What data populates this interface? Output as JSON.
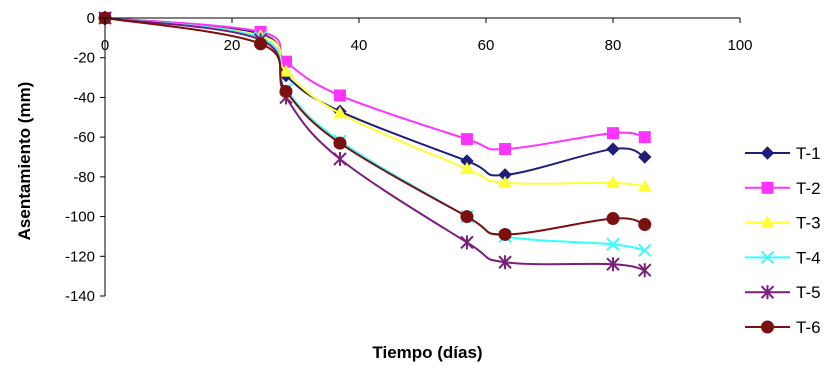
{
  "chart_data": {
    "type": "line",
    "xlabel": "Tiempo (días)",
    "ylabel": "Asentamiento (mm)",
    "xlim": [
      0,
      100
    ],
    "ylim": [
      -140,
      0
    ],
    "x_ticks": [
      "0",
      "20",
      "40",
      "60",
      "80",
      "100"
    ],
    "y_ticks": [
      "0",
      "-20",
      "-40",
      "-60",
      "-80",
      "-100",
      "-120",
      "-140"
    ],
    "x_tick_values": [
      0,
      20,
      40,
      60,
      80,
      100
    ],
    "y_tick_values": [
      0,
      -20,
      -40,
      -60,
      -80,
      -100,
      -120,
      -140
    ],
    "grid": false,
    "legend_position": "right",
    "x": [
      0,
      24.5,
      28.5,
      37,
      57,
      63,
      80,
      85
    ],
    "series": [
      {
        "name": "T-1",
        "marker": "diamond",
        "color": "#1f1f7a",
        "values": [
          0,
          -8,
          -29,
          -47,
          -72,
          -79,
          -66,
          -70
        ]
      },
      {
        "name": "T-2",
        "marker": "square",
        "color": "#ff33ff",
        "values": [
          0,
          -7,
          -22,
          -39,
          -61,
          -66,
          -58,
          -60
        ]
      },
      {
        "name": "T-3",
        "marker": "triangle",
        "color": "#ffff33",
        "values": [
          0,
          -9,
          -27,
          -48,
          -76,
          -83,
          -83,
          -85
        ]
      },
      {
        "name": "T-4",
        "marker": "x",
        "color": "#33ffff",
        "values": [
          0,
          -10,
          -36,
          -62,
          -100,
          -110,
          -114,
          -117
        ]
      },
      {
        "name": "T-5",
        "marker": "star",
        "color": "#7a1f7a",
        "values": [
          0,
          -11,
          -40,
          -71,
          -113,
          -123,
          -124,
          -127
        ]
      },
      {
        "name": "T-6",
        "marker": "circle",
        "color": "#7a1010",
        "values": [
          0,
          -13,
          -37,
          -63,
          -100,
          -109,
          -101,
          -104
        ]
      }
    ]
  }
}
